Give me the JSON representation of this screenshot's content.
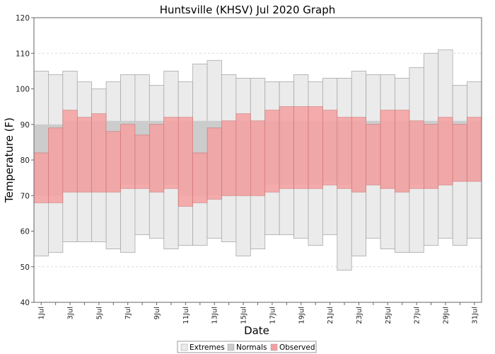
{
  "chart_data": {
    "type": "bar",
    "title": "Huntsville (KHSV) Jul 2020 Graph",
    "xlabel": "Date",
    "ylabel": "Temperature (F)",
    "ylim": [
      40,
      120
    ],
    "yticks": [
      40,
      50,
      60,
      70,
      80,
      90,
      100,
      110,
      120
    ],
    "grid": true,
    "legend_placement": "bottom-center",
    "categories": [
      "1 Jul",
      "2 Jul",
      "3 Jul",
      "4 Jul",
      "5 Jul",
      "6 Jul",
      "7 Jul",
      "8 Jul",
      "9 Jul",
      "10 Jul",
      "11 Jul",
      "12 Jul",
      "13 Jul",
      "14 Jul",
      "15 Jul",
      "16 Jul",
      "17 Jul",
      "18 Jul",
      "19 Jul",
      "20 Jul",
      "21 Jul",
      "22 Jul",
      "23 Jul",
      "24 Jul",
      "25 Jul",
      "26 Jul",
      "27 Jul",
      "28 Jul",
      "29 Jul",
      "30 Jul",
      "31 Jul"
    ],
    "xtick_labels": [
      "1 Jul",
      "",
      "3 Jul",
      "",
      "5 Jul",
      "",
      "7 Jul",
      "",
      "9 Jul",
      "",
      "11 Jul",
      "",
      "13 Jul",
      "",
      "15 Jul",
      "",
      "17 Jul",
      "",
      "19 Jul",
      "",
      "21 Jul",
      "",
      "23 Jul",
      "",
      "25 Jul",
      "",
      "27 Jul",
      "",
      "29 Jul",
      "",
      "31 Jul"
    ],
    "series": [
      {
        "name": "Extremes",
        "color": "#ebebeb",
        "low": [
          53,
          54,
          57,
          57,
          57,
          55,
          54,
          59,
          58,
          55,
          56,
          56,
          58,
          57,
          53,
          55,
          59,
          59,
          58,
          56,
          59,
          49,
          53,
          58,
          55,
          54,
          54,
          56,
          58,
          56,
          58
        ],
        "high": [
          105,
          104,
          105,
          102,
          100,
          102,
          104,
          104,
          101,
          105,
          102,
          107,
          108,
          104,
          103,
          103,
          102,
          102,
          104,
          102,
          103,
          103,
          105,
          104,
          104,
          103,
          106,
          110,
          111,
          101,
          102
        ]
      },
      {
        "name": "Normals",
        "color": "#cccccc",
        "low": [
          70,
          70,
          71,
          71,
          71,
          71,
          73,
          73,
          71,
          73,
          70,
          70,
          70,
          70,
          70,
          70,
          73,
          73,
          73,
          73,
          74,
          73,
          71,
          73,
          72,
          71,
          73,
          72,
          73,
          74,
          74
        ],
        "high": [
          90,
          90,
          91,
          91,
          91,
          91,
          91,
          91,
          91,
          91,
          91,
          91,
          91,
          91,
          91,
          91,
          91,
          91,
          91,
          91,
          91,
          91,
          91,
          91,
          91,
          91,
          91,
          91,
          91,
          91,
          91
        ]
      },
      {
        "name": "Observed",
        "color": "#f4a0a0",
        "low": [
          68,
          68,
          71,
          71,
          71,
          71,
          72,
          72,
          71,
          72,
          67,
          68,
          69,
          70,
          70,
          70,
          71,
          72,
          72,
          72,
          73,
          72,
          71,
          73,
          72,
          71,
          72,
          72,
          73,
          74,
          74
        ],
        "high": [
          82,
          89,
          94,
          92,
          93,
          88,
          90,
          87,
          90,
          92,
          92,
          82,
          89,
          91,
          93,
          91,
          94,
          95,
          95,
          95,
          94,
          92,
          92,
          90,
          94,
          94,
          91,
          90,
          92,
          90,
          92
        ]
      }
    ]
  }
}
